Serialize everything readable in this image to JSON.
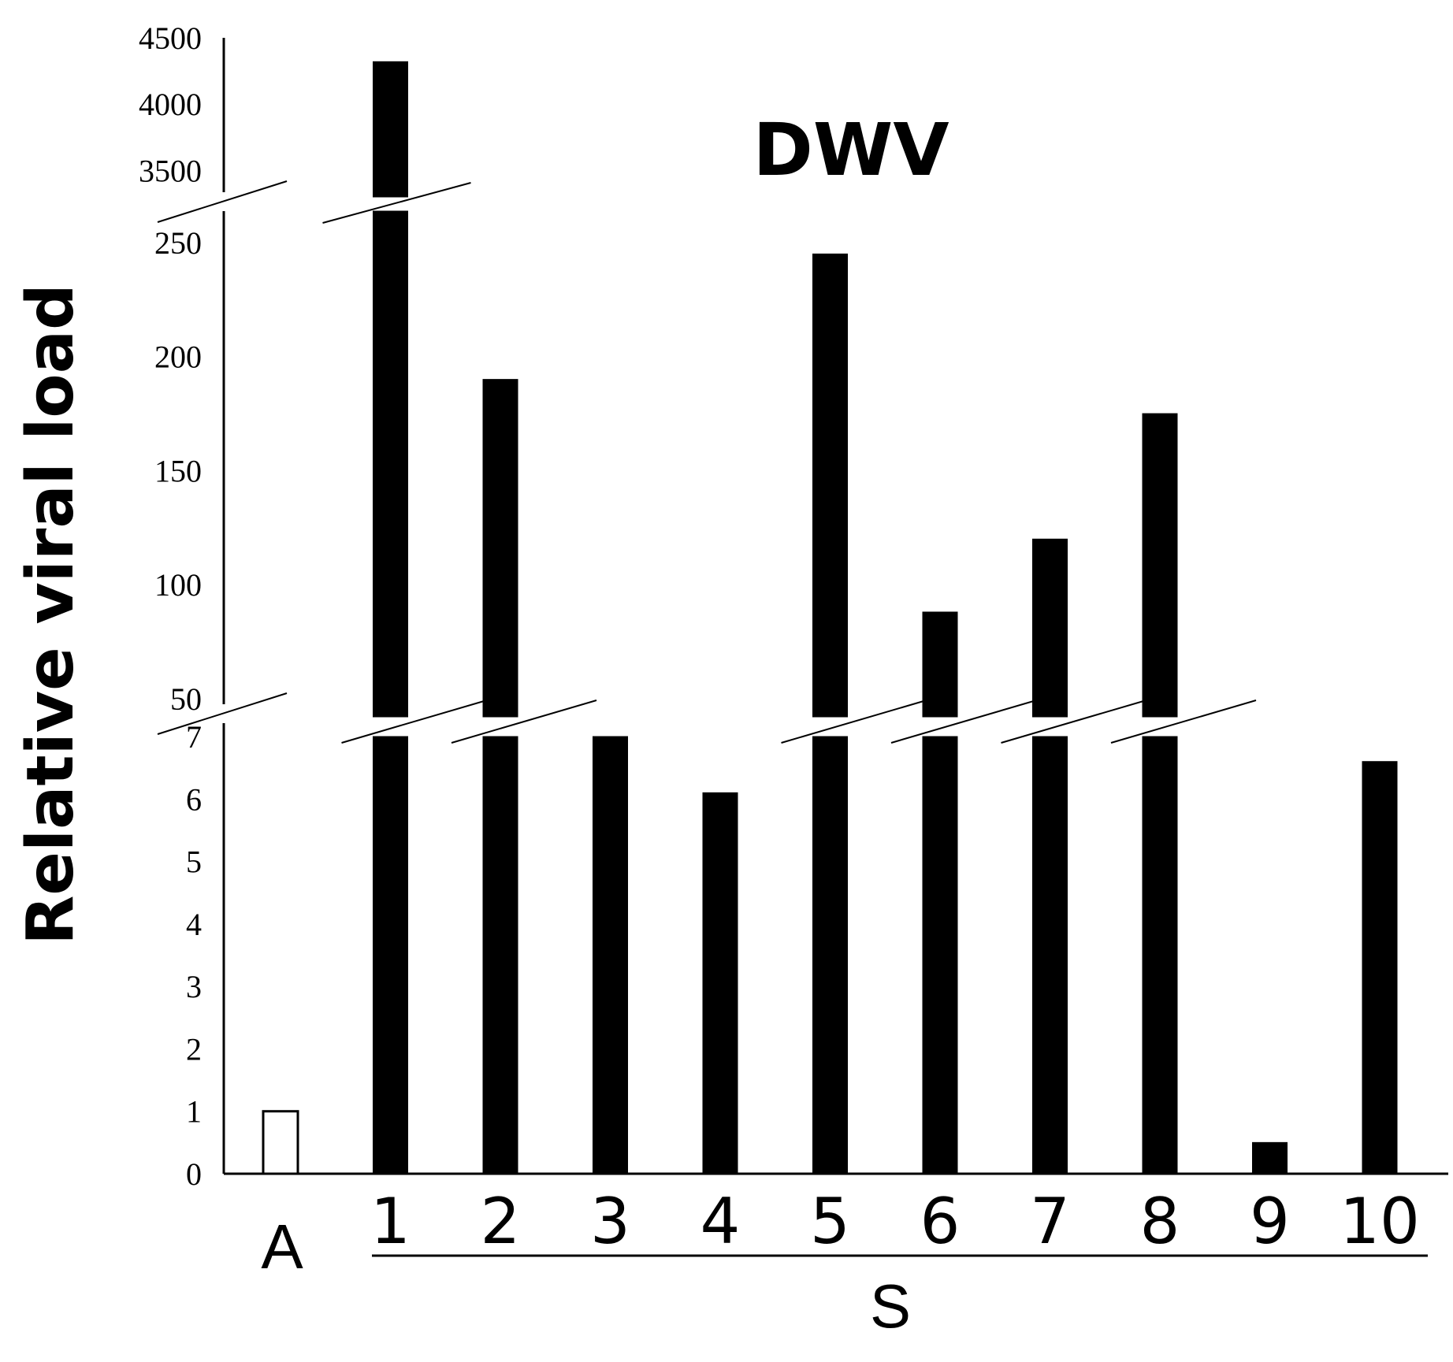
{
  "chart_data": {
    "type": "bar",
    "title": "DWV",
    "ylabel": "Relative viral load",
    "xlabel": "",
    "group_label": "S",
    "group_members": [
      "1",
      "2",
      "3",
      "4",
      "5",
      "6",
      "7",
      "8",
      "9",
      "10"
    ],
    "categories": [
      "A",
      "1",
      "2",
      "3",
      "4",
      "5",
      "6",
      "7",
      "8",
      "9",
      "10"
    ],
    "values": [
      1,
      4320,
      190,
      7,
      6.1,
      245,
      88,
      120,
      175,
      0.5,
      6.6
    ],
    "bar_fill": [
      "#ffffff",
      "#000000",
      "#000000",
      "#000000",
      "#000000",
      "#000000",
      "#000000",
      "#000000",
      "#000000",
      "#000000",
      "#000000"
    ],
    "axis_break": true,
    "segments": [
      {
        "range": [
          0,
          7
        ],
        "ticks": [
          "0",
          "1",
          "2",
          "3",
          "4",
          "5",
          "6",
          "7"
        ]
      },
      {
        "range": [
          50,
          270
        ],
        "ticks": [
          "50",
          "100",
          "150",
          "200",
          "250"
        ]
      },
      {
        "range": [
          3300,
          4500
        ],
        "ticks": [
          "3500",
          "4000",
          "4500"
        ]
      }
    ],
    "grid": false,
    "legend": "none"
  }
}
